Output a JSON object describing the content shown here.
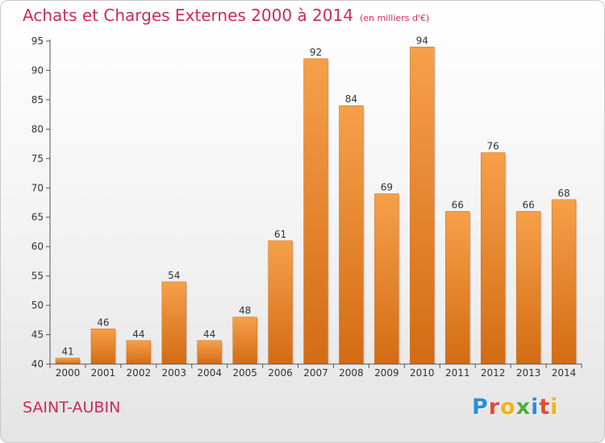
{
  "chart_data": {
    "type": "bar",
    "title": "Achats et Charges Externes 2000 à 2014",
    "subtitle": "(en milliers d'€)",
    "categories": [
      "2000",
      "2001",
      "2002",
      "2003",
      "2004",
      "2005",
      "2006",
      "2007",
      "2008",
      "2009",
      "2010",
      "2011",
      "2012",
      "2013",
      "2014"
    ],
    "values": [
      41,
      46,
      44,
      54,
      44,
      48,
      61,
      92,
      84,
      69,
      94,
      66,
      76,
      66,
      68
    ],
    "ylim": [
      40,
      95
    ],
    "yticks": [
      40,
      45,
      50,
      55,
      60,
      65,
      70,
      75,
      80,
      85,
      90,
      95
    ],
    "grid": false,
    "bar_color": "#f0902c",
    "bar_color_dark": "#d8731a"
  },
  "place_name": "SAINT-AUBIN",
  "logo": {
    "letters": [
      {
        "char": "P",
        "color": "#2a8fd6"
      },
      {
        "char": "r",
        "color": "#e8483a"
      },
      {
        "char": "o",
        "color": "#f3b316"
      },
      {
        "char": "x",
        "color": "#4eae3a"
      },
      {
        "char": "i",
        "color": "#2a8fd6"
      },
      {
        "char": "t",
        "color": "#e8483a"
      },
      {
        "char": "i",
        "color": "#f3b316"
      }
    ]
  },
  "colors": {
    "title": "#cc2b5b",
    "axis": "#555555"
  }
}
